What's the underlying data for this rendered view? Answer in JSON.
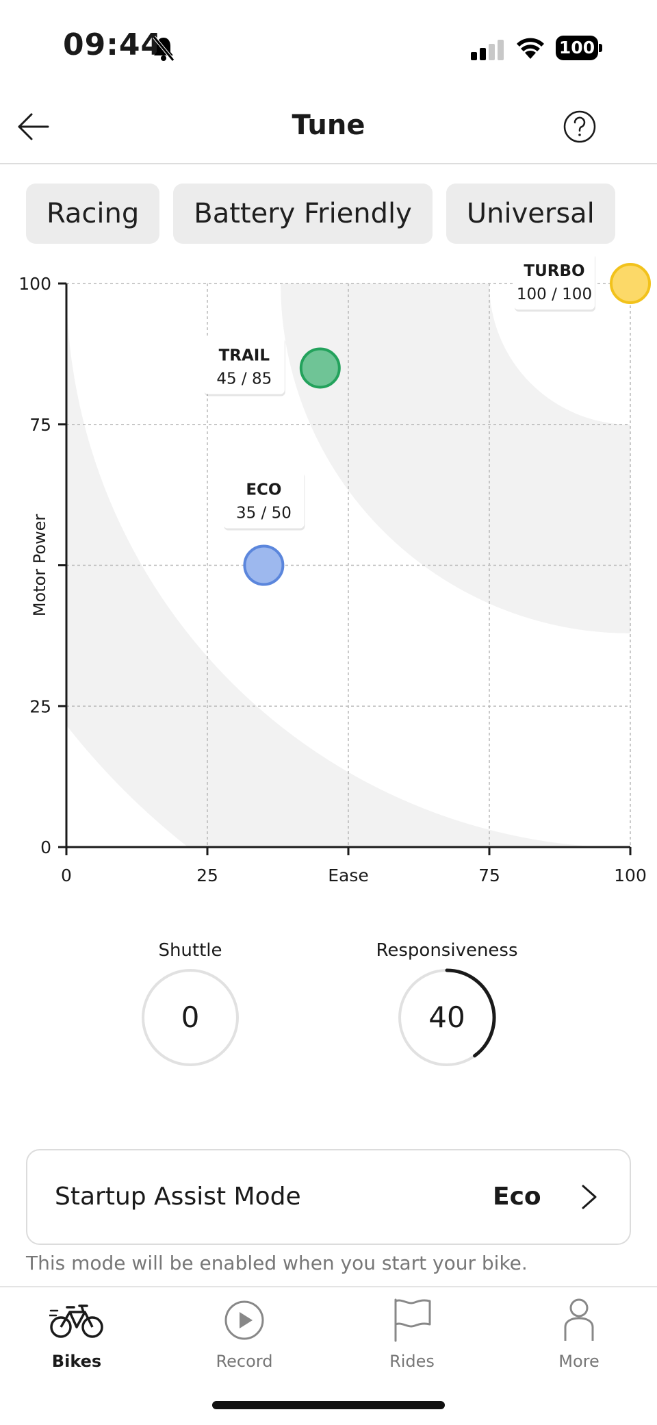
{
  "status_bar": {
    "time": "09:44",
    "battery": "100"
  },
  "header": {
    "title": "Tune"
  },
  "presets": [
    "Racing",
    "Battery Friendly",
    "Universal"
  ],
  "chart_data": {
    "type": "scatter",
    "xlabel": "Ease",
    "ylabel": "Motor Power",
    "xlim": [
      0,
      100
    ],
    "ylim": [
      0,
      100
    ],
    "x_ticks": [
      "0",
      "25",
      "Ease",
      "75",
      "100"
    ],
    "y_ticks": [
      "0",
      "25",
      "50",
      "75",
      "100"
    ],
    "y_tick_labels": [
      "0",
      "25",
      "",
      "75",
      "100"
    ],
    "grid": true,
    "points": [
      {
        "name": "TURBO",
        "x": 100,
        "y": 100,
        "label": "100 / 100",
        "color": "#fcd968",
        "stroke": "#f2c21b"
      },
      {
        "name": "TRAIL",
        "x": 45,
        "y": 85,
        "label": "45 / 85",
        "color": "#6fc496",
        "stroke": "#23a25c"
      },
      {
        "name": "ECO",
        "x": 35,
        "y": 50,
        "label": "35 / 50",
        "color": "#9db8ee",
        "stroke": "#5b86dc"
      }
    ]
  },
  "dials": {
    "shuttle": {
      "label": "Shuttle",
      "value": "0",
      "level": 0
    },
    "responsiveness": {
      "label": "Responsiveness",
      "value": "40",
      "level": 40
    }
  },
  "startup_assist": {
    "label": "Startup Assist Mode",
    "value": "Eco",
    "hint": "This mode will be enabled when you start your bike."
  },
  "nav": {
    "bikes": "Bikes",
    "record": "Record",
    "rides": "Rides",
    "more": "More"
  }
}
